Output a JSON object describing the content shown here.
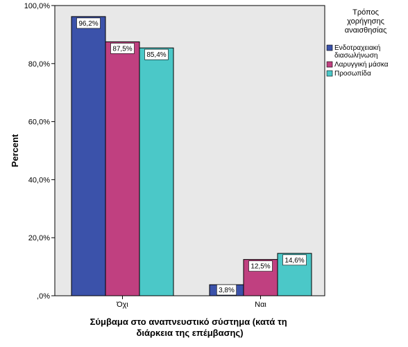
{
  "chart_data": {
    "type": "bar",
    "categories": [
      "Όχι",
      "Ναι"
    ],
    "series": [
      {
        "name": "Ενδοτραχειακή διασωλήνωση",
        "values": [
          96.2,
          3.8
        ],
        "labels": [
          "96,2%",
          "3,8%"
        ],
        "color": "#3b52aa"
      },
      {
        "name": "Λαρυγγική μάσκα",
        "values": [
          87.5,
          12.5
        ],
        "labels": [
          "87,5%",
          "12,5%"
        ],
        "color": "#c04080"
      },
      {
        "name": "Προσωπίδα",
        "values": [
          85.4,
          14.6
        ],
        "labels": [
          "85,4%",
          "14,6%"
        ],
        "color": "#4bc8c8"
      }
    ],
    "ylabel": "Percent",
    "xlabel_lines": [
      "Σύμβαμα στο αναπνευστικό σύστημα (κατά τη",
      "διάρκεια της επέμβασης)"
    ],
    "ylim": [
      0,
      100
    ],
    "yticks": [
      0,
      20,
      40,
      60,
      80,
      100
    ],
    "ytick_labels": [
      ",0%",
      "20,0%",
      "40,0%",
      "60,0%",
      "80,0%",
      "100,0%"
    ],
    "grid": false,
    "plot_background": "#e8e8e8",
    "legend": {
      "placement": "right",
      "title_lines": [
        "Τρόπος",
        "χορήγησης",
        "αναισθησίας"
      ],
      "entries": [
        {
          "label_lines": [
            "Ενδοτραχειακή",
            "διασωλήνωση"
          ],
          "color": "#3b52aa"
        },
        {
          "label_lines": [
            "Λαρυγγική μάσκα"
          ],
          "color": "#c04080"
        },
        {
          "label_lines": [
            "Προσωπίδα"
          ],
          "color": "#4bc8c8"
        }
      ]
    }
  }
}
